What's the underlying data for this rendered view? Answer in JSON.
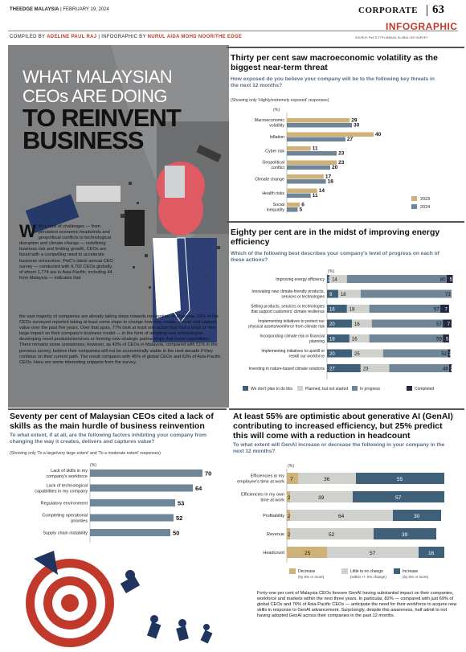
{
  "header": {
    "publication": "THEEDGE MALAYSIA",
    "date": "FEBRUARY 19, 2024",
    "section": "CORPORATE",
    "page": "63",
    "label": "INFOGRAPHIC",
    "credit_prefix": "COMPILED BY",
    "credit_name1": "ADELINE PAUL RAJ",
    "credit_mid": "| INFOGRAPHIC BY",
    "credit_name2": "NURUL AIDA MOHD NOOR/THE EDGE",
    "source": "SOURCE: PwC'S 27TH ANNUAL GLOBAL CEO SURVEY"
  },
  "hero": {
    "title_line1": "WHAT MALAYSIAN",
    "title_line2": "CEOs ARE DOING",
    "title_line3": "TO REINVENT",
    "title_line4": "BUSINESS"
  },
  "article": {
    "dropcap": "W",
    "para1": "ith a host of challenges — from persistent economic headwinds and geopolitical conflicts to technological disruption and climate change — redefining business risk and limiting growth, CEOs are faced with a compelling need to accelerate business reinvention. PwC's latest annual CEO survey — conducted with 4,702 CEOs globally, of whom 1,774 are in Asia-Pacific, including 44 from Malaysia — indicates that",
    "para2": "the vast majority of companies are already taking steps towards reinvention. In Malaysia, 93% of the CEOs surveyed reported taking at least some steps to change how they create, deliver and capture value over the past five years. Over that span, 77% took at least one action that had a large or very large impact on their company's business model — in the form of adopting new technologies, developing novel products/services or forming new strategic partnerships that boost capabilities.",
    "para3": "There remains some uneasiness, however, as 43% of CEOs in Malaysia, compared with 51% in the previous survey, believe their companies will not be economically viable in the next decade if they continue on their current path. The result compares with 45% of global CEOs and 63% of Asia-Pacific CEOs. Here are some interesting snippets from the survey.",
    "closing": "Forty-one per cent of Malaysia CEOs foresee GenAI having substantial impact on their companies, workforce and markets within the next three years. In particular, 82% — compared with just 69% of global CEOs and 76% of Asia-Pacific CEOs — anticipate the need for their workforce to acquire new skills in response to GenAI advancement. Surprisingly, despite this awareness, half admit to not having adopted GenAI across their companies in the past 12 months."
  },
  "sections": {
    "s1": {
      "title": "Thirty per cent saw macroeconomic volatility as the biggest near-term threat",
      "question": "How exposed do you believe your company will be to the following key threats in the next 12 months?",
      "note": "(Showing only 'Highly/extremely exposed' responses)",
      "unit": "(%)"
    },
    "s2": {
      "title": "Eighty per cent are in the midst of improving energy efficiency",
      "question": "Which of the following best describes your company's level of progress on each of these actions?",
      "unit": "(%)"
    },
    "s3": {
      "title": "Seventy per cent of Malaysian CEOs cited a lack of skills as the main hurdle of business reinvention",
      "question": "To what extent, if at all, are the following factors inhibiting your company from changing the way it creates, delivers and captures value?",
      "note": "(Showing only 'To a large/very large extent' and 'To a moderate extent' responses)",
      "unit": "(%)"
    },
    "s4": {
      "title": "At least 55% are optimistic about generative AI (GenAI) contributing to increased efficiency, but 25% predict this will come with a reduction in headcount",
      "question": "To what extent will GenAI increase or decrease the following in your company in the next 12 months?",
      "unit": "(%)"
    }
  },
  "chart_data": [
    {
      "type": "bar",
      "orientation": "horizontal",
      "categories": [
        "Macroeconomic volatility",
        "Inflation",
        "Cyber risk",
        "Geopolitical conflict",
        "Climate change",
        "Health risks",
        "Social inequality"
      ],
      "series": [
        {
          "name": "2023",
          "color": "#cfb27a",
          "values": [
            29,
            40,
            11,
            23,
            17,
            14,
            6
          ]
        },
        {
          "name": "2024",
          "color": "#6f8699",
          "values": [
            30,
            27,
            23,
            20,
            18,
            11,
            5
          ]
        }
      ],
      "legend": "bottom-right"
    },
    {
      "type": "bar",
      "orientation": "horizontal",
      "stacked": true,
      "categories": [
        "Improving energy efficiency",
        "Innovating new climate-friendly products, services or technologies",
        "Selling products, services or technologies that support customers' climate resilience",
        "Implementing initiatives to protect our physical assets/workforce from climate risk",
        "Incorporating climate risk in financial planning",
        "Implementing initiatives to upskill or reskill our workforce",
        "Investing in nature-based climate solutions"
      ],
      "series": [
        {
          "name": "We don't plan to do this",
          "color": "#3e6079",
          "values": [
            2,
            9,
            16,
            20,
            18,
            20,
            27
          ]
        },
        {
          "name": "Planned, but not started",
          "color": "#cfd1cc",
          "values": [
            14,
            18,
            18,
            16,
            16,
            25,
            23
          ]
        },
        {
          "name": "In progress",
          "color": "#6f8699",
          "values": [
            80,
            73,
            57,
            57,
            59,
            52,
            48
          ]
        },
        {
          "name": "Completed",
          "color": "#262a40",
          "values": [
            5,
            0,
            7,
            7,
            5,
            2,
            2
          ]
        }
      ],
      "legend": "bottom"
    },
    {
      "type": "bar",
      "orientation": "horizontal",
      "categories": [
        "Lack of skills in my company's workforce",
        "Lack of technological capabilities in my company",
        "Regulatory environment",
        "Completing operational priorities",
        "Supply chain instability"
      ],
      "values": [
        70,
        64,
        53,
        52,
        50
      ],
      "color": "#6f8699"
    },
    {
      "type": "bar",
      "orientation": "horizontal",
      "stacked": true,
      "categories": [
        "Efficiencies in my employee's time at work",
        "Efficiencies in my own time at work",
        "Profitability",
        "Revenue",
        "Headcount"
      ],
      "series": [
        {
          "name": "Decrease",
          "sublabel": "(by 5% or more)",
          "color": "#cfb27a",
          "values": [
            7,
            2,
            2,
            2,
            25
          ]
        },
        {
          "name": "Little to no change",
          "sublabel": "(within +/- 5% change)",
          "color": "#cfd1cc",
          "values": [
            36,
            39,
            64,
            52,
            57
          ]
        },
        {
          "name": "Increase",
          "sublabel": "(by 5% or more)",
          "color": "#3e6079",
          "values": [
            55,
            57,
            30,
            39,
            16
          ]
        }
      ],
      "legend": "bottom"
    }
  ]
}
